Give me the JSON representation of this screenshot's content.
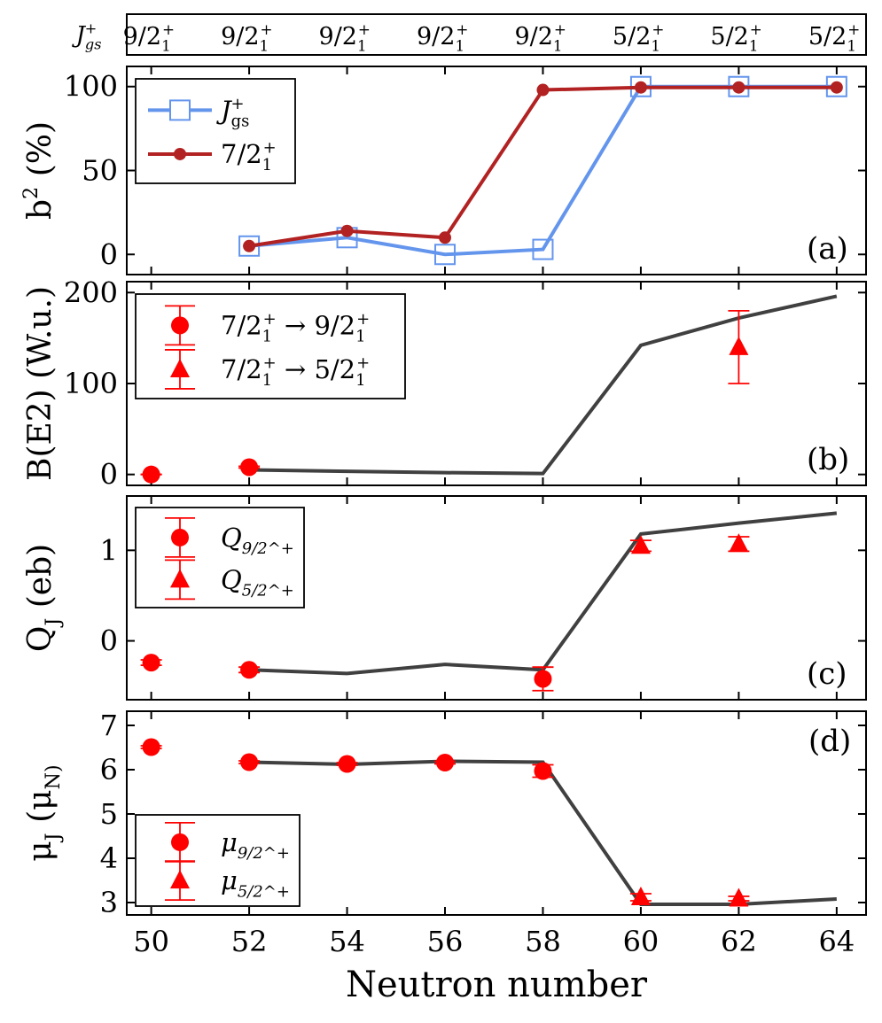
{
  "xlabel": "Neutron number",
  "x_ticks": [
    50,
    52,
    54,
    56,
    58,
    60,
    62,
    64
  ],
  "xlim": [
    49.5,
    64.6
  ],
  "header": {
    "row_label": "J_gs^+",
    "values": [
      "9/2_1^+",
      "9/2_1^+",
      "9/2_1^+",
      "9/2_1^+",
      "9/2_1^+",
      "5/2_1^+",
      "5/2_1^+",
      "5/2_1^+"
    ]
  },
  "chart_data": [
    {
      "type": "line",
      "panel": "(a)",
      "ylabel": "b^2 (%)",
      "ylim": [
        -12,
        112
      ],
      "yticks": [
        0,
        50,
        100
      ],
      "legend_position": "top-left",
      "series": [
        {
          "name": "J_gs^+",
          "color": "#6495ED",
          "marker": "open-square",
          "x": [
            52,
            54,
            56,
            58,
            60,
            62,
            64
          ],
          "y": [
            5,
            10,
            0,
            3,
            100,
            100,
            100
          ]
        },
        {
          "name": "7/2_1^+",
          "color": "#B22222",
          "marker": "filled-circle",
          "x": [
            52,
            54,
            56,
            58,
            60,
            62,
            64
          ],
          "y": [
            5,
            14,
            10,
            98,
            99.5,
            99.5,
            99.5
          ]
        }
      ]
    },
    {
      "type": "line",
      "panel": "(b)",
      "ylabel": "B(E2) (W.u.)",
      "ylim": [
        -12,
        212
      ],
      "yticks": [
        0,
        100,
        200
      ],
      "legend_position": "top-left",
      "line": {
        "color": "#404040",
        "x": [
          52,
          54,
          56,
          58,
          60,
          62,
          64
        ],
        "y": [
          5,
          3.5,
          2,
          1,
          142,
          172,
          196
        ]
      },
      "series": [
        {
          "name": "7/2_1^+ → 9/2_1^+",
          "marker": "circle",
          "color": "#FF0000",
          "x": [
            50,
            52
          ],
          "y": [
            0,
            8
          ],
          "err": [
            0,
            1
          ]
        },
        {
          "name": "7/2_1^+ → 5/2_1^+",
          "marker": "triangle",
          "color": "#FF0000",
          "x": [
            62
          ],
          "y": [
            140
          ],
          "err": [
            40
          ]
        }
      ]
    },
    {
      "type": "line",
      "panel": "(c)",
      "ylabel": "Q_J (eb)",
      "ylim": [
        -0.65,
        1.6
      ],
      "yticks": [
        0,
        1
      ],
      "legend_position": "top-left",
      "line": {
        "color": "#404040",
        "x": [
          52,
          54,
          56,
          58,
          60,
          62,
          64
        ],
        "y": [
          -0.32,
          -0.36,
          -0.26,
          -0.32,
          1.18,
          1.3,
          1.41
        ]
      },
      "series": [
        {
          "name": "Q_{9/2^+}",
          "marker": "circle",
          "color": "#FF0000",
          "x": [
            50,
            52,
            58
          ],
          "y": [
            -0.24,
            -0.32,
            -0.42
          ],
          "err": [
            0.03,
            0.03,
            0.13
          ]
        },
        {
          "name": "Q_{5/2^+}",
          "marker": "triangle",
          "color": "#FF0000",
          "x": [
            60,
            62
          ],
          "y": [
            1.05,
            1.07
          ],
          "err": [
            0.06,
            0.08
          ]
        }
      ]
    },
    {
      "type": "line",
      "panel": "(d)",
      "ylabel": "μ_J (μ_N)",
      "ylim": [
        2.72,
        7.32
      ],
      "yticks": [
        3,
        4,
        5,
        6,
        7
      ],
      "legend_position": "bottom-left",
      "line": {
        "color": "#404040",
        "x": [
          52,
          54,
          56,
          58,
          60,
          62,
          64
        ],
        "y": [
          6.17,
          6.12,
          6.19,
          6.17,
          2.96,
          2.96,
          3.08
        ]
      },
      "series": [
        {
          "name": "μ_{9/2^+}",
          "marker": "circle",
          "color": "#FF0000",
          "x": [
            50,
            52,
            54,
            56,
            58
          ],
          "y": [
            6.51,
            6.17,
            6.13,
            6.16,
            5.97
          ],
          "err": [
            0.03,
            0.03,
            0.03,
            0.03,
            0.14
          ]
        },
        {
          "name": "μ_{5/2^+}",
          "marker": "triangle",
          "color": "#FF0000",
          "x": [
            60,
            62
          ],
          "y": [
            3.12,
            3.09
          ],
          "err": [
            0.08,
            0.05
          ]
        }
      ]
    }
  ]
}
